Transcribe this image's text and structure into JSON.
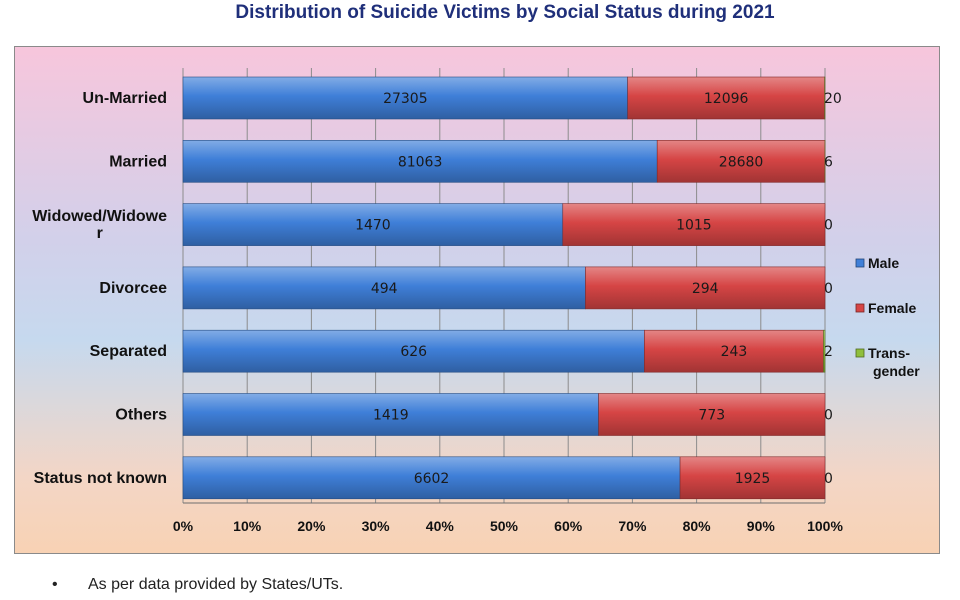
{
  "footnote": "As per data provided by States/UTs.",
  "footnote_bullet": "•",
  "chart_data": {
    "type": "bar",
    "orientation": "horizontal",
    "stacked": "percent",
    "title": "Distribution of Suicide Victims by Social Status during 2021",
    "categories": [
      "Un-Married",
      "Married",
      "Widowed/Widower",
      "Divorcee",
      "Separated",
      "Others",
      "Status not known"
    ],
    "category_lines": [
      [
        "Un-Married"
      ],
      [
        "Married"
      ],
      [
        "Widowed/Widowe",
        "r"
      ],
      [
        "Divorcee"
      ],
      [
        "Separated"
      ],
      [
        "Others"
      ],
      [
        "Status not known"
      ]
    ],
    "series": [
      {
        "name": "Male",
        "name_lines": [
          "Male"
        ],
        "color": "#3f7fd8",
        "values": [
          27305,
          81063,
          1470,
          494,
          626,
          1419,
          6602
        ]
      },
      {
        "name": "Female",
        "name_lines": [
          "Female"
        ],
        "color": "#d64545",
        "values": [
          12096,
          28680,
          1015,
          294,
          243,
          773,
          1925
        ]
      },
      {
        "name": "Trans-gender",
        "name_lines": [
          "Trans-",
          "gender"
        ],
        "color": "#8fbf3c",
        "values": [
          20,
          6,
          0,
          0,
          2,
          0,
          0
        ]
      }
    ],
    "x_ticks": [
      "0%",
      "10%",
      "20%",
      "30%",
      "40%",
      "50%",
      "60%",
      "70%",
      "80%",
      "90%",
      "100%"
    ],
    "xlim": [
      0,
      100
    ],
    "grid": true,
    "legend": "right"
  }
}
